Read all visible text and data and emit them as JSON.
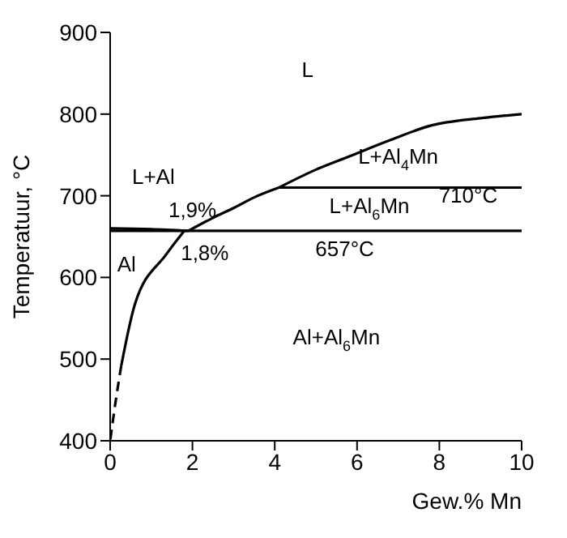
{
  "chart_data": {
    "type": "line",
    "xlabel": "Gew.% Mn",
    "ylabel": "Temperatuur, °C",
    "xlim": [
      0,
      10
    ],
    "xticks": [
      0,
      2,
      4,
      6,
      8,
      10
    ],
    "ylim": [
      400,
      900
    ],
    "yticks": [
      400,
      500,
      600,
      700,
      800,
      900
    ],
    "grid": false,
    "legend": false,
    "marker": "none",
    "line_style": "solid",
    "series": [
      {
        "color": "#000000",
        "x": [
          0,
          1,
          1.9
        ],
        "values": [
          660,
          659,
          657
        ]
      },
      {
        "color": "#000000",
        "x": [
          1.9,
          2.5,
          3,
          3.5,
          4.1
        ],
        "values": [
          657,
          673,
          685,
          698,
          710
        ]
      },
      {
        "color": "#000000",
        "x": [
          4.1,
          5,
          5.8,
          6.8,
          7.8,
          9,
          10
        ],
        "values": [
          710,
          732,
          748,
          768,
          786,
          795,
          800
        ]
      },
      {
        "color": "#000000",
        "x": [
          4.1,
          10
        ],
        "values": [
          710,
          710
        ]
      },
      {
        "color": "#000000",
        "x": [
          0,
          10
        ],
        "values": [
          657,
          657
        ]
      },
      {
        "color": "#000000",
        "x": [
          1.8,
          1.36,
          0.6,
          0.27
        ],
        "values": [
          657,
          628,
          567,
          492
        ]
      },
      {
        "color": "#000000",
        "x": [
          0.27,
          0.15,
          0
        ],
        "values": [
          492,
          454,
          400
        ],
        "line_style": "dashed"
      }
    ],
    "annotations": [
      "L",
      "L+Al",
      "1,9%",
      "1,8%",
      "Al",
      "L+Al$_{4}$Mn",
      "L+Al$_{6}$Mn",
      "710°C",
      "657°C",
      "Al+Al$_{6}$Mn"
    ]
  }
}
